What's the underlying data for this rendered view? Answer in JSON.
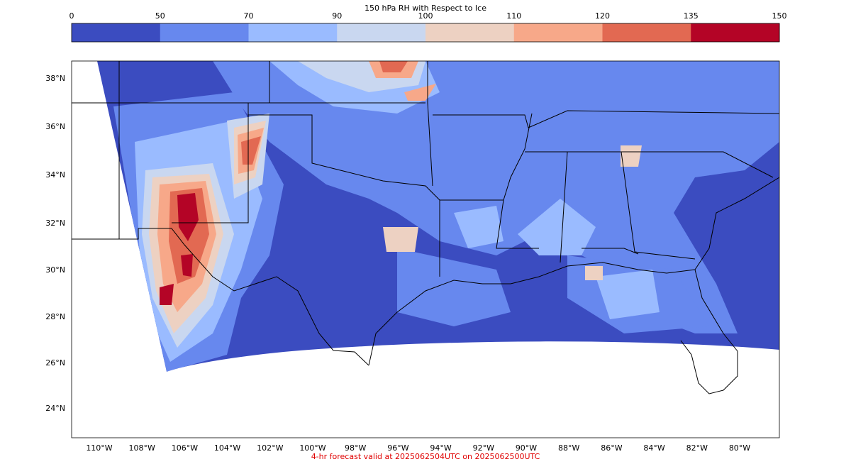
{
  "colorbar": {
    "title": "150 hPa RH with Respect to Ice",
    "levels": [
      "0",
      "50",
      "70",
      "90",
      "100",
      "110",
      "120",
      "135",
      "150"
    ],
    "colors": [
      "#3b4cc0",
      "#6788ee",
      "#9abbff",
      "#c9d7f0",
      "#edd1c2",
      "#f7a889",
      "#e26952",
      "#b40426"
    ]
  },
  "map": {
    "lat_labels": [
      "38°N",
      "36°N",
      "34°N",
      "32°N",
      "30°N",
      "28°N",
      "26°N",
      "24°N"
    ],
    "lon_labels": [
      "110°W",
      "108°W",
      "106°W",
      "104°W",
      "102°W",
      "100°W",
      "98°W",
      "96°W",
      "94°W",
      "92°W",
      "90°W",
      "88°W",
      "86°W",
      "84°W",
      "82°W",
      "80°W"
    ],
    "land_color": "#4a5fc9",
    "outside_color": "#ffffff"
  },
  "footer": {
    "text": "4-hr forecast valid at 2025062504UTC on 2025062500UTC"
  }
}
